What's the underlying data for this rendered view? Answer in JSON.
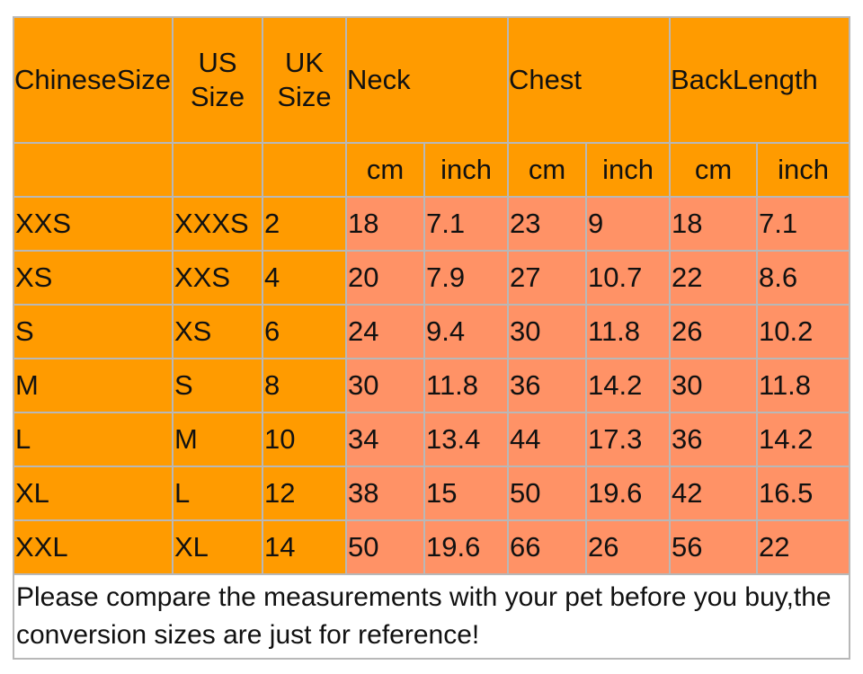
{
  "header": {
    "chinese_size": "ChineseSize",
    "us_size_line1": "US",
    "us_size_line2": "Size",
    "uk_size_line1": "UK",
    "uk_size_line2": "Size",
    "neck": "Neck",
    "chest": "Chest",
    "back_length": "BackLength"
  },
  "units": {
    "neck_cm": "cm",
    "neck_inch": "inch",
    "chest_cm": "cm",
    "chest_inch": "inch",
    "back_cm": "cm",
    "back_inch": "inch"
  },
  "rows": [
    {
      "chinese": "XXS",
      "us": "XXXS",
      "uk": "2",
      "neck_cm": "18",
      "neck_inch": "7.1",
      "chest_cm": "23",
      "chest_inch": "9",
      "back_cm": "18",
      "back_inch": "7.1"
    },
    {
      "chinese": "XS",
      "us": "XXS",
      "uk": "4",
      "neck_cm": "20",
      "neck_inch": "7.9",
      "chest_cm": "27",
      "chest_inch": "10.7",
      "back_cm": "22",
      "back_inch": "8.6"
    },
    {
      "chinese": "S",
      "us": "XS",
      "uk": "6",
      "neck_cm": "24",
      "neck_inch": "9.4",
      "chest_cm": "30",
      "chest_inch": "11.8",
      "back_cm": "26",
      "back_inch": "10.2"
    },
    {
      "chinese": "M",
      "us": "S",
      "uk": "8",
      "neck_cm": "30",
      "neck_inch": "11.8",
      "chest_cm": "36",
      "chest_inch": "14.2",
      "back_cm": "30",
      "back_inch": "11.8"
    },
    {
      "chinese": "L",
      "us": "M",
      "uk": "10",
      "neck_cm": "34",
      "neck_inch": "13.4",
      "chest_cm": "44",
      "chest_inch": "17.3",
      "back_cm": "36",
      "back_inch": "14.2"
    },
    {
      "chinese": "XL",
      "us": "L",
      "uk": "12",
      "neck_cm": "38",
      "neck_inch": "15",
      "chest_cm": "50",
      "chest_inch": "19.6",
      "back_cm": "42",
      "back_inch": "16.5"
    },
    {
      "chinese": "XXL",
      "us": "XL",
      "uk": "14",
      "neck_cm": "50",
      "neck_inch": "19.6",
      "chest_cm": "66",
      "chest_inch": "26",
      "back_cm": "56",
      "back_inch": "22"
    }
  ],
  "footer_note": "Please compare the measurements with your pet before you buy,the conversion sizes are just for reference!",
  "colors": {
    "header_orange": "#ff9b00",
    "measurement_salmon": "#ff9266",
    "border_gray": "#b8b8b8"
  }
}
